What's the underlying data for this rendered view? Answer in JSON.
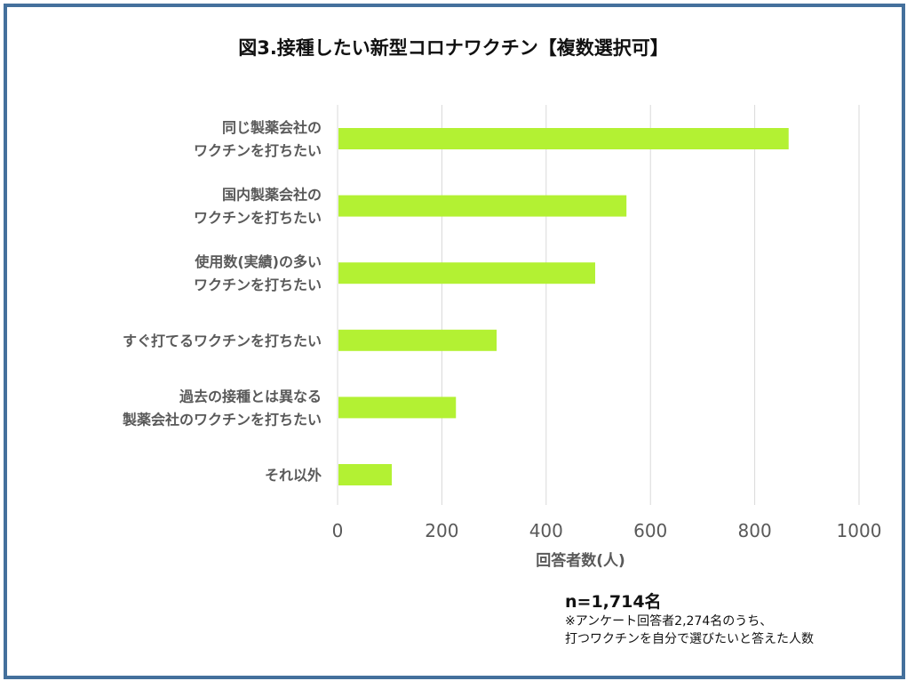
{
  "chart_data": {
    "type": "bar",
    "orientation": "horizontal",
    "title": "図3.接種したい新型コロナワクチン【複数選択可】",
    "categories": [
      [
        "同じ製薬会社の",
        "ワクチンを打ちたい"
      ],
      [
        "国内製薬会社の",
        "ワクチンを打ちたい"
      ],
      [
        "使用数(実績)の多い",
        "ワクチンを打ちたい"
      ],
      [
        "すぐ打てるワクチンを打ちたい"
      ],
      [
        "過去の接種とは異なる",
        "製薬会社のワクチンを打ちたい"
      ],
      [
        "それ以外"
      ]
    ],
    "values": [
      865,
      554,
      494,
      305,
      227,
      104
    ],
    "xlabel": "回答者数(人)",
    "xlim": [
      0,
      1000
    ],
    "xticks": [
      "0",
      "200",
      "400",
      "600",
      "800",
      "1000"
    ],
    "grid": true,
    "bar_color": "#b3f133"
  },
  "notes": {
    "n": "n=1,714名",
    "line1": "※アンケート回答者2,274名のうち、",
    "line2": "打つワクチンを自分で選びたいと答えた人数"
  }
}
